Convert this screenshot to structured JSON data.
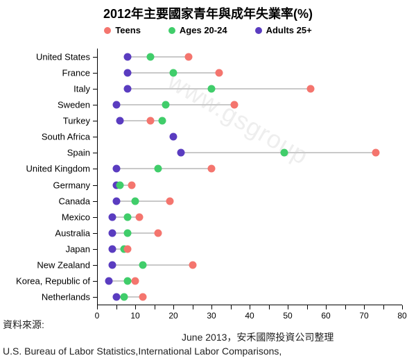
{
  "chart": {
    "type": "dotplot",
    "title": "2012年主要國家青年與成年失業率(%)",
    "title_fontsize": 18,
    "background_color": "#ffffff",
    "watermark_text": "www.gsgroup",
    "legend": [
      {
        "label": "Teens",
        "color": "#f4756e"
      },
      {
        "label": "Ages 20-24",
        "color": "#40cd6a"
      },
      {
        "label": "Adults 25+",
        "color": "#5a3cc0"
      }
    ],
    "x_axis": {
      "min": 0,
      "max": 80,
      "tick_step": 5,
      "label_step": 10,
      "label_fontsize": 12
    },
    "connector_color": "#c9c9c9",
    "countries": [
      {
        "name": "United States",
        "teens": 24,
        "age20_24": 14,
        "adults": 8
      },
      {
        "name": "France",
        "teens": 32,
        "age20_24": 20,
        "adults": 8
      },
      {
        "name": "Italy",
        "teens": 56,
        "age20_24": 30,
        "adults": 8
      },
      {
        "name": "Sweden",
        "teens": 36,
        "age20_24": 18,
        "adults": 5
      },
      {
        "name": "Turkey",
        "teens": 14,
        "age20_24": 17,
        "adults": 6
      },
      {
        "name": "South Africa",
        "teens": null,
        "age20_24": null,
        "adults": 20
      },
      {
        "name": "Spain",
        "teens": 73,
        "age20_24": 49,
        "adults": 22
      },
      {
        "name": "United Kingdom",
        "teens": 30,
        "age20_24": 16,
        "adults": 5
      },
      {
        "name": "Germany",
        "teens": 9,
        "age20_24": 6,
        "adults": 5
      },
      {
        "name": "Canada",
        "teens": 19,
        "age20_24": 10,
        "adults": 5
      },
      {
        "name": "Mexico",
        "teens": 11,
        "age20_24": 8,
        "adults": 4
      },
      {
        "name": "Australia",
        "teens": 16,
        "age20_24": 8,
        "adults": 4
      },
      {
        "name": "Japan",
        "teens": 8,
        "age20_24": 7,
        "adults": 4
      },
      {
        "name": "New Zealand",
        "teens": 25,
        "age20_24": 12,
        "adults": 4
      },
      {
        "name": "Korea, Republic of",
        "teens": 10,
        "age20_24": 8,
        "adults": 3
      },
      {
        "name": "Netherlands",
        "teens": 12,
        "age20_24": 7,
        "adults": 5
      }
    ]
  },
  "footer": {
    "source_label": "資料來源:",
    "line2": "June 2013，安禾國際投資公司整理",
    "line3": "U.S. Bureau of Labor Statistics,International Labor Comparisons,"
  }
}
